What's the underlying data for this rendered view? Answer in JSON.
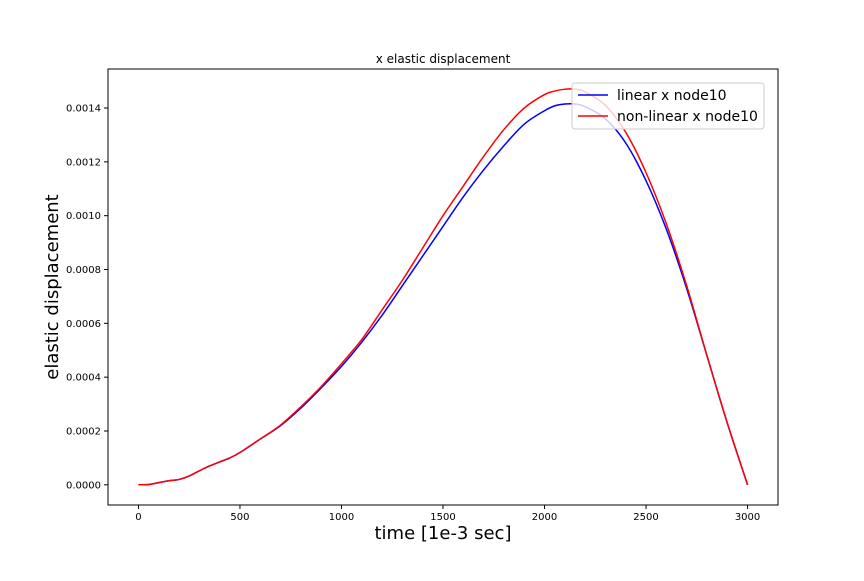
{
  "chart_data": {
    "type": "line",
    "title": "x elastic displacement",
    "xlabel": "time [1e-3 sec]",
    "ylabel": "elastic displacement",
    "xlim": [
      -150,
      3150
    ],
    "ylim": [
      -7.5e-05,
      0.001545
    ],
    "x_ticks": [
      0,
      500,
      1000,
      1500,
      2000,
      2500,
      3000
    ],
    "x_tick_labels": [
      "0",
      "500",
      "1000",
      "1500",
      "2000",
      "2500",
      "3000"
    ],
    "y_ticks": [
      0.0,
      0.0002,
      0.0004,
      0.0006,
      0.0008,
      0.001,
      0.0012,
      0.0014
    ],
    "y_tick_labels": [
      "0.0000",
      "0.0002",
      "0.0004",
      "0.0006",
      "0.0008",
      "0.0010",
      "0.0012",
      "0.0014"
    ],
    "grid": false,
    "legend_position": "top-right",
    "series": [
      {
        "name": "linear x node10",
        "color": "#0000ff",
        "x": [
          0,
          50,
          100,
          150,
          200,
          250,
          300,
          350,
          400,
          450,
          500,
          600,
          700,
          800,
          900,
          1000,
          1100,
          1200,
          1300,
          1400,
          1500,
          1600,
          1700,
          1800,
          1900,
          2000,
          2050,
          2100,
          2150,
          2200,
          2300,
          2400,
          2500,
          2600,
          2700,
          2800,
          2900,
          3000
        ],
        "y": [
          0.0,
          1e-06,
          8e-06,
          1.5e-05,
          2e-05,
          3.3e-05,
          5.2e-05,
          7e-05,
          8.5e-05,
          0.0001,
          0.00012,
          0.00017,
          0.00022,
          0.000285,
          0.00036,
          0.00044,
          0.00053,
          0.00063,
          0.00074,
          0.00085,
          0.00096,
          0.00107,
          0.00117,
          0.00126,
          0.00134,
          0.00139,
          0.001408,
          0.001415,
          0.001415,
          0.001405,
          0.00136,
          0.00127,
          0.00113,
          0.00095,
          0.00073,
          0.00048,
          0.00023,
          0.0
        ]
      },
      {
        "name": "non-linear x node10",
        "color": "#ff0000",
        "x": [
          0,
          50,
          100,
          150,
          200,
          250,
          300,
          350,
          400,
          450,
          500,
          600,
          700,
          800,
          900,
          1000,
          1100,
          1200,
          1300,
          1400,
          1500,
          1600,
          1700,
          1800,
          1900,
          2000,
          2050,
          2100,
          2150,
          2200,
          2300,
          2400,
          2500,
          2600,
          2700,
          2800,
          2900,
          3000
        ],
        "y": [
          0.0,
          1e-06,
          8e-06,
          1.5e-05,
          2e-05,
          3.3e-05,
          5.2e-05,
          7e-05,
          8.5e-05,
          0.0001,
          0.00012,
          0.00017,
          0.000222,
          0.00029,
          0.000365,
          0.00045,
          0.00054,
          0.00065,
          0.00076,
          0.00088,
          0.001,
          0.00111,
          0.00122,
          0.00132,
          0.0014,
          0.00145,
          0.001463,
          0.00147,
          0.00147,
          0.00146,
          0.00141,
          0.00131,
          0.00116,
          0.00097,
          0.00074,
          0.00048,
          0.00023,
          0.0
        ]
      }
    ]
  }
}
